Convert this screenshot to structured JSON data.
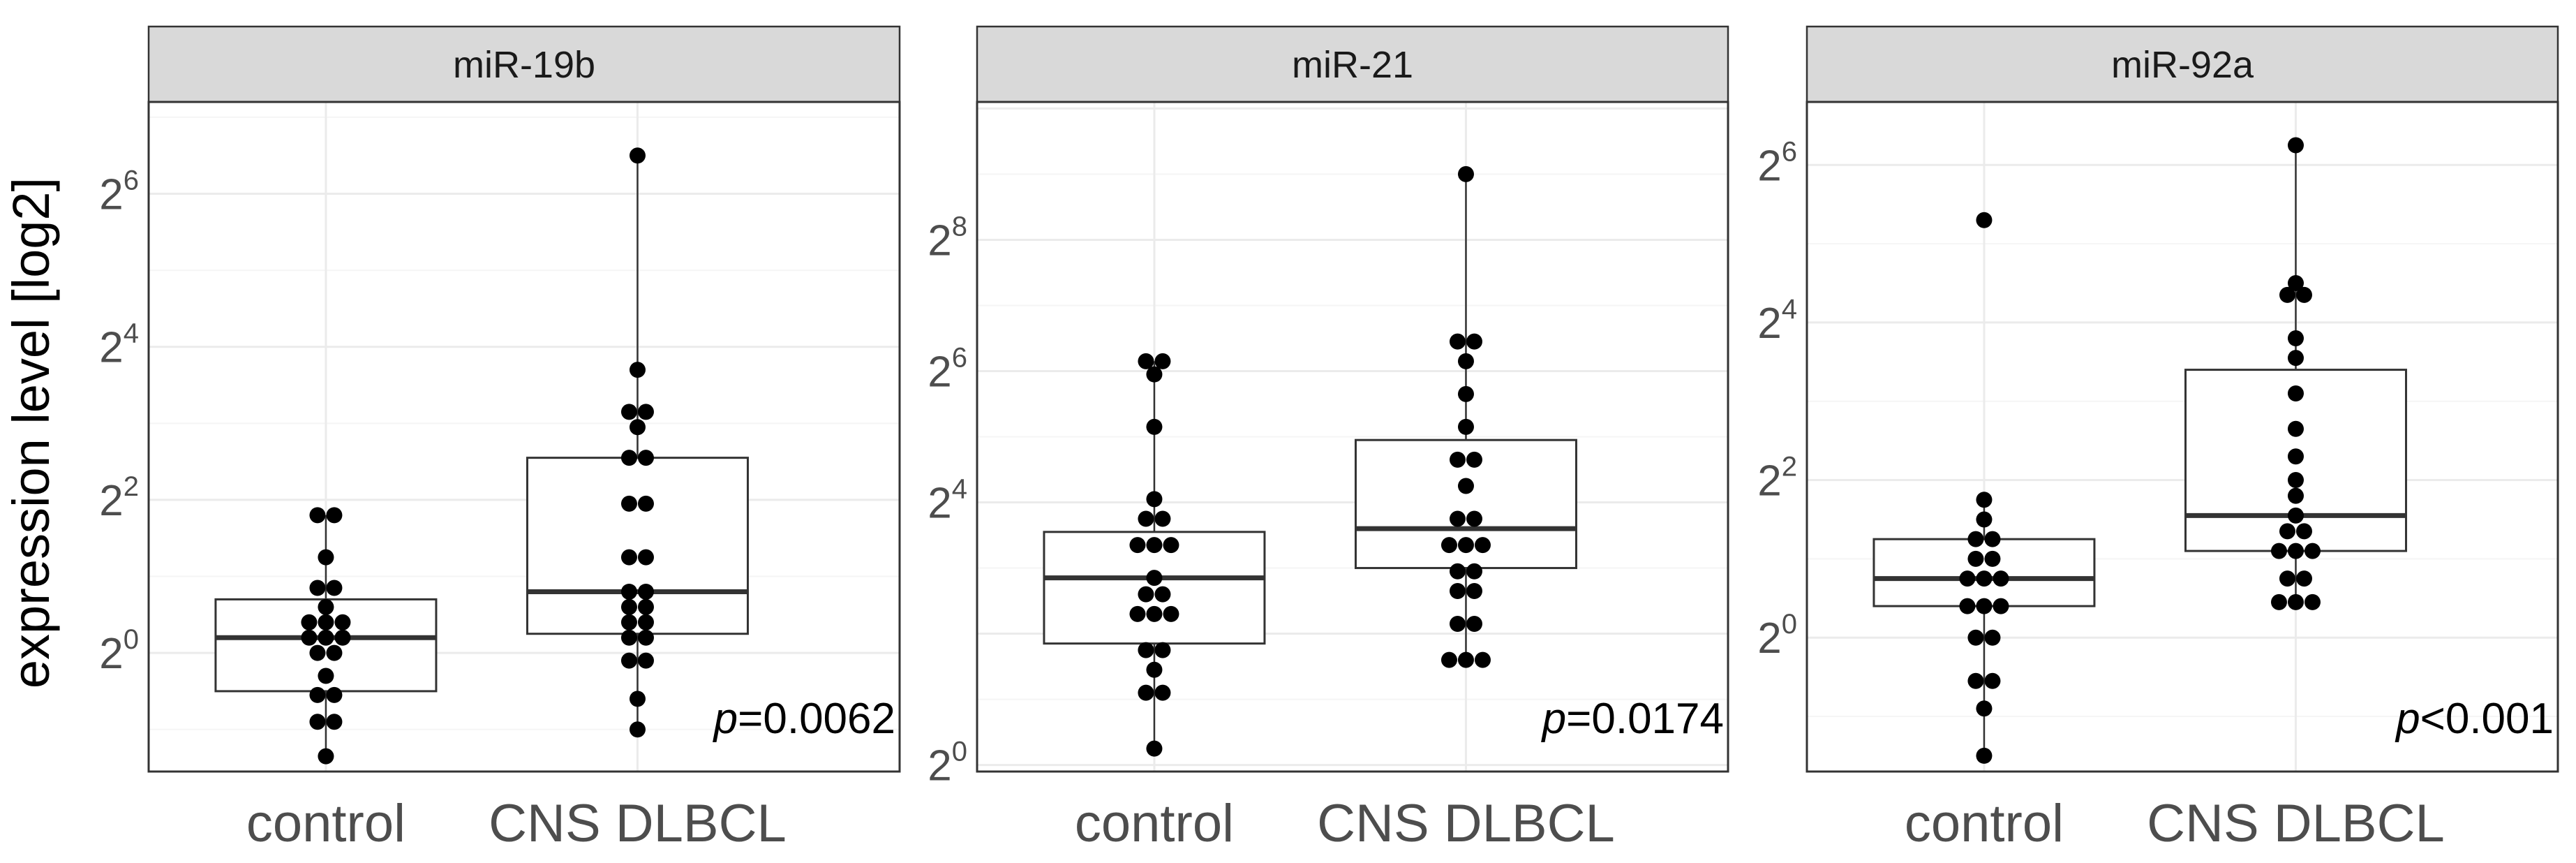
{
  "chart_data": {
    "type": "box-dotplot",
    "ylabel": "expression level [log2]",
    "y_scale": "log2",
    "categories": [
      "control",
      "CNS DLBCL"
    ],
    "panels": [
      {
        "title": "miR-19b",
        "ylim": [
          -1.55,
          7.2
        ],
        "y_ticks": [
          0,
          2,
          4,
          6
        ],
        "p_label": "p",
        "p_value": "=0.0062",
        "groups": [
          {
            "name": "control",
            "box": {
              "q1": -0.5,
              "median": 0.2,
              "q3": 0.7
            },
            "whisker": [
              -1.35,
              1.8
            ],
            "points": [
              1.8,
              1.8,
              1.25,
              0.85,
              0.85,
              0.6,
              0.4,
              0.4,
              0.4,
              0.2,
              0.2,
              0.2,
              0.0,
              0.0,
              -0.3,
              -0.55,
              -0.55,
              -0.9,
              -0.9,
              -1.35
            ]
          },
          {
            "name": "CNS DLBCL",
            "box": {
              "q1": 0.25,
              "median": 0.8,
              "q3": 2.55
            },
            "whisker": [
              -1.0,
              6.5
            ],
            "points": [
              6.5,
              3.7,
              3.15,
              3.15,
              2.95,
              2.55,
              2.55,
              1.95,
              1.95,
              1.25,
              1.25,
              0.8,
              0.8,
              0.6,
              0.6,
              0.4,
              0.4,
              0.2,
              0.2,
              -0.1,
              -0.1,
              -0.6,
              -1.0
            ]
          }
        ]
      },
      {
        "title": "miR-21",
        "ylim": [
          -0.1,
          10.1
        ],
        "y_ticks": [
          0,
          4,
          6,
          8
        ],
        "p_label": "p",
        "p_value": "=0.0174",
        "groups": [
          {
            "name": "control",
            "box": {
              "q1": 1.85,
              "median": 2.85,
              "q3": 3.55
            },
            "whisker": [
              0.25,
              6.15
            ],
            "points": [
              6.15,
              6.15,
              5.95,
              5.15,
              4.05,
              3.75,
              3.75,
              3.35,
              3.35,
              3.35,
              2.85,
              2.6,
              2.6,
              2.3,
              2.3,
              2.3,
              1.75,
              1.75,
              1.45,
              1.1,
              1.1,
              0.25
            ]
          },
          {
            "name": "CNS DLBCL",
            "box": {
              "q1": 3.0,
              "median": 3.6,
              "q3": 4.95
            },
            "whisker": [
              1.6,
              9.0
            ],
            "points": [
              9.0,
              6.45,
              6.45,
              6.15,
              5.65,
              5.15,
              4.65,
              4.65,
              4.25,
              3.75,
              3.75,
              3.35,
              3.35,
              3.35,
              2.95,
              2.95,
              2.65,
              2.65,
              2.15,
              2.15,
              1.6,
              1.6,
              1.6
            ]
          }
        ]
      },
      {
        "title": "miR-92a",
        "ylim": [
          -1.7,
          6.8
        ],
        "y_ticks": [
          0,
          2,
          4,
          6
        ],
        "p_label": "p",
        "p_value": "<0.001",
        "groups": [
          {
            "name": "control",
            "box": {
              "q1": 0.4,
              "median": 0.75,
              "q3": 1.25
            },
            "whisker": [
              -1.5,
              1.75
            ],
            "points": [
              5.3,
              1.75,
              1.5,
              1.25,
              1.25,
              1.0,
              1.0,
              0.75,
              0.75,
              0.75,
              0.4,
              0.4,
              0.4,
              0.0,
              0.0,
              -0.55,
              -0.55,
              -0.9,
              -1.5
            ]
          },
          {
            "name": "CNS DLBCL",
            "box": {
              "q1": 1.1,
              "median": 1.55,
              "q3": 3.4
            },
            "whisker": [
              0.45,
              6.25
            ],
            "points": [
              6.25,
              4.5,
              4.35,
              4.35,
              3.8,
              3.55,
              3.1,
              2.65,
              2.3,
              2.0,
              1.8,
              1.55,
              1.35,
              1.35,
              1.1,
              1.1,
              1.1,
              0.75,
              0.75,
              0.45,
              0.45,
              0.45
            ]
          }
        ]
      }
    ]
  },
  "colors": {
    "strip_fill": "#d9d9d9",
    "panel_border": "#333333",
    "grid_major": "#ebebeb",
    "grid_minor": "#f5f5f5",
    "points": "#000000",
    "median": "#333333"
  }
}
